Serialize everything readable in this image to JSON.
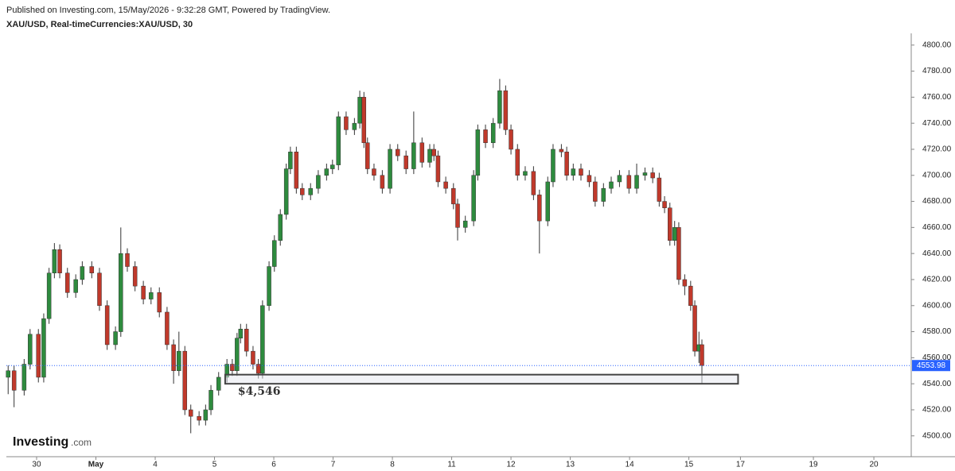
{
  "header": {
    "published": "Published on Investing.com, 15/May/2026 - 9:32:28 GMT, Powered by TradingView.",
    "symbol": "XAU/USD, Real-timeCurrencies:XAU/USD, 30"
  },
  "logo": {
    "brand": "Investing",
    "suffix": ".com"
  },
  "chart_data": {
    "type": "candlestick",
    "up_color": "#2e8b3e",
    "down_color": "#c0392b",
    "xlim": [
      -0.51,
      14.75
    ],
    "xticks": [
      {
        "value": 0,
        "label": "30"
      },
      {
        "value": 1,
        "label": "May"
      },
      {
        "value": 2,
        "label": "4"
      },
      {
        "value": 3,
        "label": "5"
      },
      {
        "value": 4,
        "label": "6"
      },
      {
        "value": 5,
        "label": "7"
      },
      {
        "value": 6,
        "label": "8"
      },
      {
        "value": 7,
        "label": "11"
      },
      {
        "value": 8,
        "label": "12"
      },
      {
        "value": 9,
        "label": "13"
      },
      {
        "value": 10,
        "label": "14"
      },
      {
        "value": 11,
        "label": "15"
      },
      {
        "value": 11.87,
        "label": "17"
      },
      {
        "value": 13.1,
        "label": "19"
      },
      {
        "value": 14.12,
        "label": "20"
      }
    ],
    "ylim": [
      4484,
      4809
    ],
    "yticks": [
      {
        "value": 4500,
        "label": "4500.00"
      },
      {
        "value": 4520,
        "label": "4520.00"
      },
      {
        "value": 4540,
        "label": "4540.00"
      },
      {
        "value": 4560,
        "label": "4560.00"
      },
      {
        "value": 4580,
        "label": "4580.00"
      },
      {
        "value": 4600,
        "label": "4600.00"
      },
      {
        "value": 4620,
        "label": "4620.00"
      },
      {
        "value": 4640,
        "label": "4640.00"
      },
      {
        "value": 4660,
        "label": "4660.00"
      },
      {
        "value": 4680,
        "label": "4680.00"
      },
      {
        "value": 4700,
        "label": "4700.00"
      },
      {
        "value": 4720,
        "label": "4720.00"
      },
      {
        "value": 4740,
        "label": "4740.00"
      },
      {
        "value": 4760,
        "label": "4760.00"
      },
      {
        "value": 4780,
        "label": "4780.00"
      },
      {
        "value": 4800,
        "label": "4800.00"
      }
    ],
    "last_price": 4553.98,
    "last_price_color": "#2962ff",
    "zone": {
      "x": [
        3.18,
        11.83
      ],
      "y": [
        4540,
        4547
      ],
      "label": "$4,546"
    },
    "candles": {
      "x": [
        -0.48,
        -0.38,
        -0.21,
        -0.11,
        0.03,
        0.12,
        0.21,
        0.3,
        0.39,
        0.52,
        0.66,
        0.77,
        0.93,
        1.06,
        1.19,
        1.33,
        1.42,
        1.53,
        1.66,
        1.8,
        1.93,
        2.07,
        2.2,
        2.31,
        2.4,
        2.5,
        2.6,
        2.74,
        2.85,
        2.94,
        3.07,
        3.21,
        3.3,
        3.38,
        3.44,
        3.54,
        3.65,
        3.74,
        3.81,
        3.92,
        4.01,
        4.11,
        4.21,
        4.28,
        4.38,
        4.48,
        4.62,
        4.75,
        4.89,
        4.99,
        5.09,
        5.22,
        5.36,
        5.45,
        5.52,
        5.58,
        5.69,
        5.83,
        5.96,
        6.09,
        6.23,
        6.36,
        6.5,
        6.63,
        6.7,
        6.77,
        6.9,
        7.03,
        7.1,
        7.23,
        7.37,
        7.44,
        7.57,
        7.7,
        7.81,
        7.91,
        8.0,
        8.11,
        8.24,
        8.38,
        8.48,
        8.62,
        8.71,
        8.85,
        8.94,
        9.05,
        9.18,
        9.32,
        9.42,
        9.56,
        9.69,
        9.83,
        9.99,
        10.12,
        10.26,
        10.39,
        10.5,
        10.59,
        10.68,
        10.76,
        10.83,
        10.93,
        11.03,
        11.1,
        11.17,
        11.22
      ],
      "open": [
        4545,
        4550,
        4535,
        4555,
        4578,
        4545,
        4590,
        4625,
        4643,
        4625,
        4610,
        4620,
        4630,
        4625,
        4600,
        4570,
        4580,
        4640,
        4630,
        4615,
        4605,
        4610,
        4595,
        4570,
        4550,
        4565,
        4520,
        4515,
        4512,
        4520,
        4535,
        4545,
        4555,
        4550,
        4575,
        4582,
        4565,
        4555,
        4548,
        4600,
        4630,
        4650,
        4670,
        4705,
        4718,
        4690,
        4685,
        4690,
        4700,
        4705,
        4708,
        4745,
        4735,
        4740,
        4760,
        4725,
        4705,
        4700,
        4690,
        4720,
        4715,
        4705,
        4725,
        4710,
        4720,
        4715,
        4695,
        4690,
        4678,
        4660,
        4665,
        4700,
        4735,
        4725,
        4740,
        4765,
        4735,
        4720,
        4700,
        4703,
        4685,
        4665,
        4695,
        4720,
        4718,
        4700,
        4705,
        4700,
        4695,
        4680,
        4690,
        4695,
        4700,
        4690,
        4700,
        4702,
        4698,
        4680,
        4675,
        4650,
        4660,
        4620,
        4615,
        4600,
        4565,
        4570
      ],
      "high": [
        4554,
        4554,
        4559,
        4582,
        4582,
        4594,
        4629,
        4648,
        4647,
        4629,
        4624,
        4634,
        4634,
        4629,
        4604,
        4584,
        4660,
        4644,
        4634,
        4619,
        4614,
        4614,
        4599,
        4574,
        4580,
        4569,
        4524,
        4519,
        4524,
        4539,
        4549,
        4559,
        4559,
        4579,
        4586,
        4586,
        4569,
        4559,
        4604,
        4634,
        4654,
        4674,
        4709,
        4722,
        4722,
        4694,
        4694,
        4704,
        4709,
        4712,
        4749,
        4749,
        4744,
        4765,
        4764,
        4729,
        4709,
        4704,
        4724,
        4724,
        4719,
        4749,
        4729,
        4724,
        4724,
        4719,
        4699,
        4694,
        4682,
        4669,
        4704,
        4739,
        4739,
        4744,
        4774,
        4769,
        4739,
        4724,
        4707,
        4707,
        4689,
        4699,
        4724,
        4724,
        4722,
        4709,
        4709,
        4704,
        4699,
        4694,
        4699,
        4704,
        4704,
        4709,
        4706,
        4706,
        4702,
        4684,
        4679,
        4665,
        4664,
        4624,
        4619,
        4604,
        4580,
        4574
      ],
      "low": [
        4532,
        4522,
        4531,
        4551,
        4541,
        4541,
        4586,
        4621,
        4621,
        4606,
        4606,
        4616,
        4621,
        4596,
        4566,
        4566,
        4576,
        4626,
        4611,
        4601,
        4601,
        4591,
        4566,
        4540,
        4546,
        4516,
        4502,
        4508,
        4508,
        4516,
        4531,
        4541,
        4546,
        4546,
        4571,
        4561,
        4551,
        4544,
        4544,
        4596,
        4626,
        4646,
        4666,
        4701,
        4686,
        4681,
        4681,
        4686,
        4696,
        4701,
        4704,
        4731,
        4731,
        4736,
        4721,
        4701,
        4696,
        4686,
        4686,
        4711,
        4701,
        4701,
        4706,
        4706,
        4711,
        4691,
        4686,
        4674,
        4650,
        4656,
        4661,
        4696,
        4721,
        4721,
        4736,
        4731,
        4716,
        4696,
        4696,
        4681,
        4640,
        4661,
        4691,
        4714,
        4696,
        4696,
        4696,
        4691,
        4676,
        4676,
        4686,
        4691,
        4686,
        4686,
        4696,
        4694,
        4676,
        4671,
        4646,
        4646,
        4616,
        4608,
        4596,
        4561,
        4556,
        4540
      ],
      "close": [
        4550,
        4535,
        4555,
        4578,
        4545,
        4590,
        4625,
        4643,
        4625,
        4610,
        4620,
        4630,
        4625,
        4600,
        4570,
        4580,
        4640,
        4630,
        4615,
        4605,
        4610,
        4595,
        4570,
        4550,
        4565,
        4520,
        4515,
        4512,
        4520,
        4535,
        4545,
        4555,
        4550,
        4575,
        4582,
        4565,
        4555,
        4548,
        4600,
        4630,
        4650,
        4670,
        4705,
        4718,
        4690,
        4685,
        4690,
        4700,
        4705,
        4708,
        4745,
        4735,
        4740,
        4760,
        4725,
        4705,
        4700,
        4690,
        4720,
        4715,
        4705,
        4725,
        4710,
        4720,
        4715,
        4695,
        4690,
        4678,
        4660,
        4665,
        4700,
        4735,
        4725,
        4740,
        4765,
        4735,
        4720,
        4700,
        4703,
        4685,
        4665,
        4695,
        4720,
        4718,
        4700,
        4705,
        4700,
        4695,
        4680,
        4690,
        4695,
        4700,
        4690,
        4700,
        4702,
        4698,
        4680,
        4675,
        4650,
        4660,
        4620,
        4615,
        4600,
        4565,
        4570,
        4554
      ]
    }
  }
}
